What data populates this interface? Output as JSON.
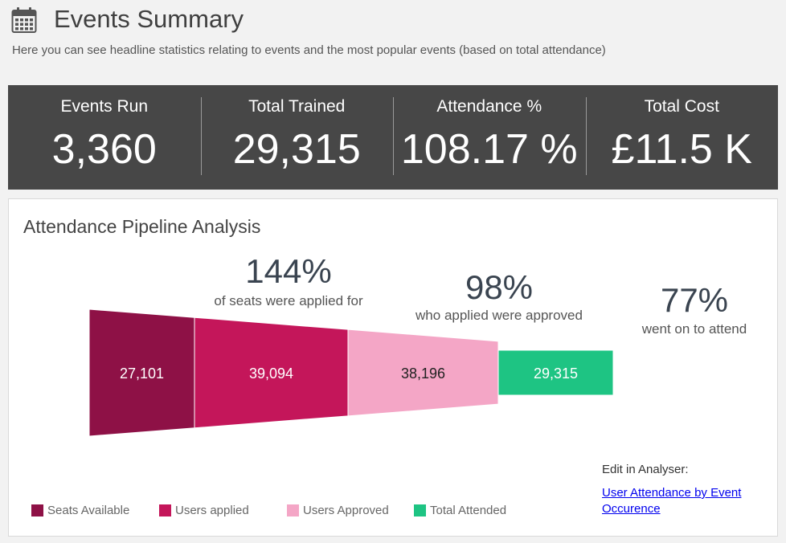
{
  "header": {
    "title": "Events Summary",
    "subtitle": "Here you can see headline statistics relating to events and the most popular events (based on total attendance)",
    "icon": "calendar-icon"
  },
  "stats": [
    {
      "label": "Events Run",
      "value": "3,360"
    },
    {
      "label": "Total Trained",
      "value": "29,315"
    },
    {
      "label": "Attendance %",
      "value": "108.17 %"
    },
    {
      "label": "Total Cost",
      "value": "£11.5 K"
    }
  ],
  "panel": {
    "title": "Attendance Pipeline Analysis",
    "edit_label": "Edit in Analyser:",
    "edit_link": "User Attendance by Event Occurence"
  },
  "chart_data": {
    "type": "funnel",
    "title": "Attendance Pipeline Analysis",
    "stages": [
      {
        "name": "Seats Available",
        "value": 27101,
        "label": "27,101",
        "color": "#8e1146"
      },
      {
        "name": "Users applied",
        "value": 39094,
        "label": "39,094",
        "color": "#c4165a"
      },
      {
        "name": "Users Approved",
        "value": 38196,
        "label": "38,196",
        "color": "#f4a6c6"
      },
      {
        "name": "Total Attended",
        "value": 29315,
        "label": "29,315",
        "color": "#1ec483"
      }
    ],
    "annotations": [
      {
        "percent": "144%",
        "text": "of seats were applied for"
      },
      {
        "percent": "98%",
        "text": "who applied were approved"
      },
      {
        "percent": "77%",
        "text": "went on to attend"
      }
    ],
    "legend_position": "bottom-left"
  }
}
